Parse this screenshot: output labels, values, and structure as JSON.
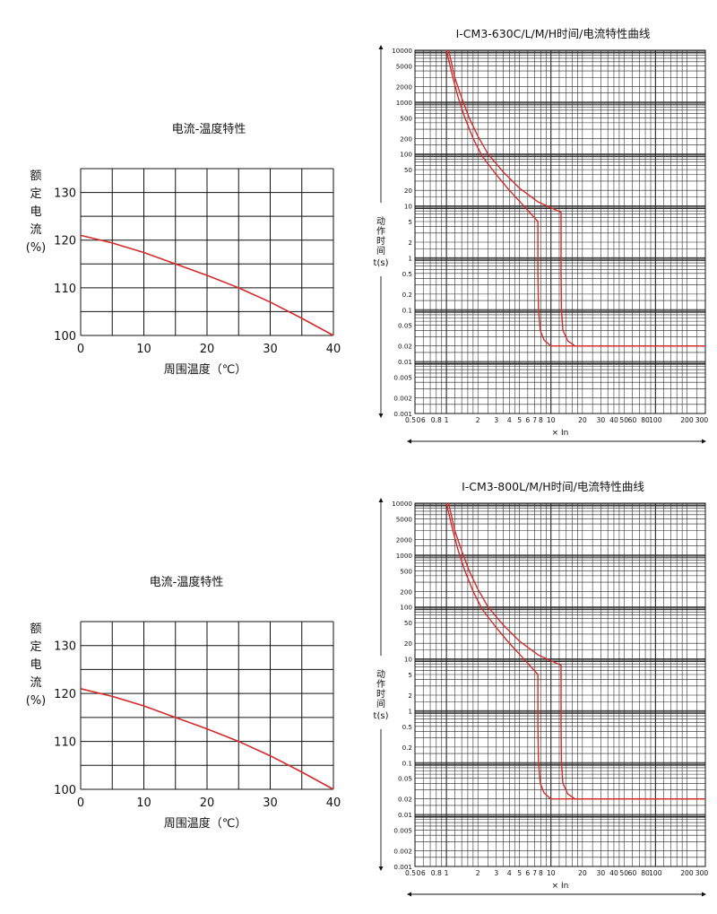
{
  "chart_data": [
    {
      "type": "line",
      "title": "电流-温度特性",
      "xlabel": "周围温度（℃）",
      "ylabel_chars": [
        "额",
        "定",
        "电",
        "流"
      ],
      "ylabel_unit": "(%)",
      "xlim": [
        0,
        40
      ],
      "ylim": [
        100,
        135
      ],
      "x_ticks": [
        0,
        10,
        20,
        30,
        40
      ],
      "y_ticks": [
        100,
        110,
        120,
        130
      ],
      "grid": true,
      "series": [
        {
          "color": "#d42a2a",
          "x": [
            0,
            5,
            10,
            15,
            20,
            25,
            30,
            35,
            40
          ],
          "values": [
            121,
            119.4,
            117.4,
            115,
            112.6,
            110,
            107,
            103.6,
            100
          ]
        }
      ]
    },
    {
      "type": "line",
      "title": "I-CM3-630C/L/M/H时间/电流特性曲线",
      "xlabel": "× In",
      "ylabel_chars": [
        "动",
        "作",
        "时",
        "间"
      ],
      "ylabel_unit": "t(s)",
      "x_scale": "log",
      "y_scale": "log",
      "xlim": [
        0.5,
        300
      ],
      "ylim": [
        0.001,
        10000
      ],
      "x_tick_labels": [
        "0.5",
        "0",
        "6",
        "0.8",
        "1",
        "2",
        "3",
        "4",
        "5",
        "6",
        "7",
        "8",
        "10",
        "20",
        "30",
        "40",
        "50",
        "60",
        "80",
        "100",
        "200",
        "300"
      ],
      "y_tick_labels": [
        "10000",
        "5000",
        "2000",
        "1000",
        "500",
        "200",
        "100",
        "50",
        "20",
        "10",
        "5",
        "2",
        "1",
        "0.5",
        "0.2",
        "0.1",
        "0.05",
        "0.02",
        "0.01",
        "0.005",
        "0.002",
        "0.001"
      ],
      "grid": true,
      "series": [
        {
          "color": "#d42a2a",
          "x": [
            1.0,
            1.15,
            1.3,
            1.5,
            1.8,
            2.2,
            3.0,
            4.0,
            5.5,
            7.5,
            7.5,
            7.6,
            7.9,
            8.6,
            10,
            300
          ],
          "values": [
            10000,
            3000,
            1200,
            500,
            200,
            90,
            40,
            20,
            10,
            5,
            0.5,
            0.1,
            0.04,
            0.026,
            0.02,
            0.02
          ]
        },
        {
          "color": "#d42a2a",
          "x": [
            1.05,
            1.2,
            1.4,
            1.65,
            2.0,
            2.5,
            3.5,
            5.0,
            7.5,
            12.5,
            12.5,
            12.6,
            13,
            14.5,
            17,
            300
          ],
          "values": [
            10000,
            3000,
            1200,
            500,
            220,
            100,
            45,
            22,
            12,
            7.5,
            0.5,
            0.1,
            0.04,
            0.025,
            0.02,
            0.02
          ]
        }
      ]
    },
    {
      "type": "line",
      "title": "电流-温度特性",
      "xlabel": "周围温度（℃）",
      "ylabel_chars": [
        "额",
        "定",
        "电",
        "流"
      ],
      "ylabel_unit": "(%)",
      "xlim": [
        0,
        40
      ],
      "ylim": [
        100,
        135
      ],
      "x_ticks": [
        0,
        10,
        20,
        30,
        40
      ],
      "y_ticks": [
        100,
        110,
        120,
        130
      ],
      "grid": true,
      "series": [
        {
          "color": "#d42a2a",
          "x": [
            0,
            5,
            10,
            15,
            20,
            25,
            30,
            35,
            40
          ],
          "values": [
            121,
            119.4,
            117.4,
            115,
            112.6,
            110,
            107,
            103.6,
            100
          ]
        }
      ]
    },
    {
      "type": "line",
      "title": "I-CM3-800L/M/H时间/电流特性曲线",
      "xlabel": "× In",
      "ylabel_chars": [
        "动",
        "作",
        "时",
        "间"
      ],
      "ylabel_unit": "t(s)",
      "x_scale": "log",
      "y_scale": "log",
      "xlim": [
        0.5,
        300
      ],
      "ylim": [
        0.001,
        10000
      ],
      "x_tick_labels": [
        "0.5",
        "0",
        "6",
        "0.8",
        "1",
        "2",
        "3",
        "4",
        "5",
        "6",
        "7",
        "8",
        "10",
        "20",
        "30",
        "40",
        "50",
        "60",
        "80",
        "100",
        "200",
        "300"
      ],
      "y_tick_labels": [
        "10000",
        "5000",
        "2000",
        "1000",
        "500",
        "200",
        "100",
        "50",
        "20",
        "10",
        "5",
        "2",
        "1",
        "0.5",
        "0.2",
        "0.1",
        "0.05",
        "0.02",
        "0.01",
        "0.005",
        "0.002",
        "0.001"
      ],
      "grid": true,
      "series": [
        {
          "color": "#d42a2a",
          "x": [
            1.0,
            1.15,
            1.3,
            1.5,
            1.8,
            2.2,
            3.0,
            4.0,
            5.5,
            7.5,
            7.5,
            7.6,
            7.9,
            8.6,
            10,
            300
          ],
          "values": [
            10000,
            3000,
            1200,
            500,
            200,
            90,
            40,
            20,
            10,
            5,
            0.5,
            0.1,
            0.04,
            0.026,
            0.02,
            0.02
          ]
        },
        {
          "color": "#d42a2a",
          "x": [
            1.05,
            1.2,
            1.4,
            1.65,
            2.0,
            2.5,
            3.5,
            5.0,
            7.5,
            12.5,
            12.5,
            12.6,
            13,
            14.5,
            17,
            300
          ],
          "values": [
            10000,
            3000,
            1200,
            500,
            220,
            100,
            45,
            22,
            12,
            7.5,
            0.5,
            0.1,
            0.04,
            0.025,
            0.02,
            0.02
          ]
        }
      ]
    }
  ]
}
